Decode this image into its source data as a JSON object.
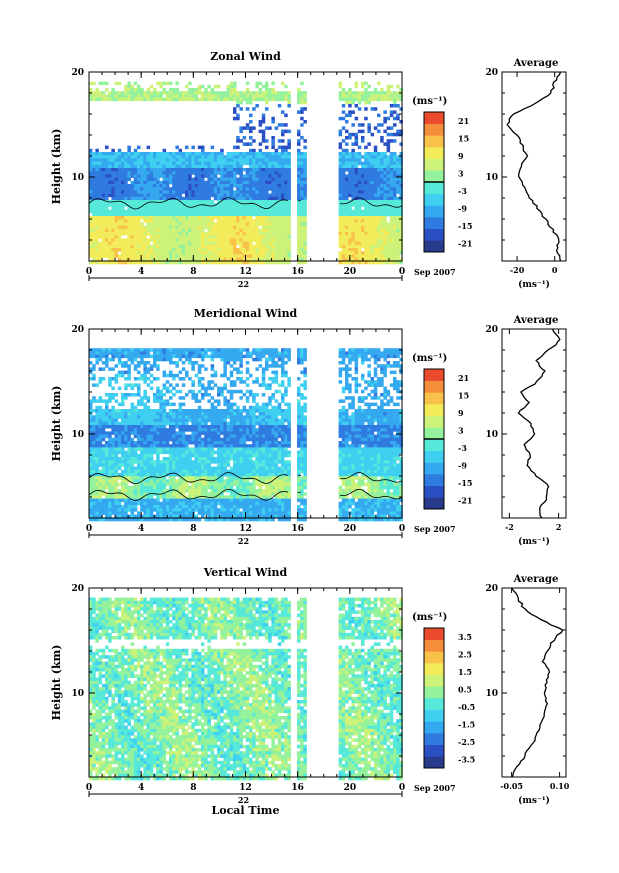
{
  "figure": {
    "xaxis_title": "Local Time",
    "date_label": "Sep 2007",
    "day_label": "22",
    "avg_title": "Average",
    "unit_label": "(ms⁻¹)",
    "ylabel": "Height (km)",
    "colors": [
      "#283a8c",
      "#2a4fc4",
      "#2f7be0",
      "#35a9ef",
      "#3fcff0",
      "#56e8d9",
      "#94f29c",
      "#cdf279",
      "#f2ec5a",
      "#f8c14a",
      "#f58e3a",
      "#ea4b2c"
    ]
  },
  "chart_data": [
    {
      "type": "heatmap",
      "title": "Zonal Wind",
      "xlabel": "",
      "ylabel": "Height (km)",
      "x_ticks": [
        "0",
        "4",
        "8",
        "12",
        "16",
        "20",
        "0"
      ],
      "y_ticks": [
        "10",
        "20"
      ],
      "xlim": [
        0,
        24
      ],
      "ylim": [
        2,
        20
      ],
      "colorbar": {
        "unit": "(ms⁻¹)",
        "ticks": [
          "21",
          "15",
          "9",
          "3",
          "-3",
          "-9",
          "-15",
          "-21"
        ],
        "range": [
          -24,
          24
        ]
      },
      "gaps_hours": [
        [
          15.4,
          15.9
        ],
        [
          16.5,
          19.0
        ]
      ],
      "profile": {
        "title": "Average",
        "xlabel": "(ms⁻¹)",
        "x_ticks": [
          "-20",
          "0"
        ],
        "xlim": [
          -28,
          6
        ],
        "y_ticks": [
          "10",
          "20"
        ],
        "height_km": [
          2,
          3,
          4,
          5,
          6,
          7,
          8,
          9,
          10,
          11,
          12,
          13,
          14,
          15,
          16,
          17,
          18,
          19,
          20
        ],
        "value": [
          3,
          1,
          2,
          -1,
          -5,
          -9,
          -13,
          -16,
          -19,
          -18,
          -15,
          -17,
          -20,
          -25,
          -22,
          -10,
          -2,
          0,
          3
        ]
      }
    },
    {
      "type": "heatmap",
      "title": "Meridional Wind",
      "xlabel": "",
      "ylabel": "Height (km)",
      "x_ticks": [
        "0",
        "4",
        "8",
        "12",
        "16",
        "20",
        "0"
      ],
      "y_ticks": [
        "10",
        "20"
      ],
      "xlim": [
        0,
        24
      ],
      "ylim": [
        2,
        20
      ],
      "colorbar": {
        "unit": "(ms⁻¹)",
        "ticks": [
          "21",
          "15",
          "9",
          "3",
          "-3",
          "-9",
          "-15",
          "-21"
        ],
        "range": [
          -24,
          24
        ]
      },
      "gaps_hours": [
        [
          15.4,
          15.9
        ],
        [
          16.5,
          19.0
        ]
      ],
      "profile": {
        "title": "Average",
        "xlabel": "(ms⁻¹)",
        "x_ticks": [
          "-2",
          "2"
        ],
        "xlim": [
          -2.6,
          2.6
        ],
        "y_ticks": [
          "10",
          "20"
        ],
        "height_km": [
          2,
          3,
          4,
          5,
          6,
          7,
          8,
          9,
          10,
          11,
          12,
          13,
          14,
          15,
          16,
          17,
          18,
          19,
          20
        ],
        "value": [
          0.6,
          0.4,
          1.1,
          1.2,
          0.2,
          -0.5,
          -0.3,
          -0.8,
          0.0,
          -0.2,
          -1.3,
          -0.4,
          -1.0,
          0.3,
          0.8,
          0.1,
          1.2,
          2.2,
          1.5
        ]
      }
    },
    {
      "type": "heatmap",
      "title": "Vertical Wind",
      "xlabel": "Local Time",
      "ylabel": "Height (km)",
      "x_ticks": [
        "0",
        "4",
        "8",
        "12",
        "16",
        "20",
        "0"
      ],
      "y_ticks": [
        "10",
        "20"
      ],
      "xlim": [
        0,
        24
      ],
      "ylim": [
        2,
        20
      ],
      "colorbar": {
        "unit": "(ms⁻¹)",
        "ticks": [
          "3.5",
          "2.5",
          "1.5",
          "0.5",
          "-0.5",
          "-1.5",
          "-2.5",
          "-3.5"
        ],
        "range": [
          -4,
          4
        ]
      },
      "gaps_hours": [
        [
          15.4,
          15.9
        ],
        [
          16.5,
          19.0
        ]
      ],
      "profile": {
        "title": "Average",
        "xlabel": "(ms⁻¹)",
        "x_ticks": [
          "-0.05",
          "0.10"
        ],
        "xlim": [
          -0.08,
          0.12
        ],
        "y_ticks": [
          "10",
          "20"
        ],
        "height_km": [
          2,
          3,
          4,
          5,
          6,
          7,
          8,
          9,
          10,
          11,
          12,
          13,
          14,
          15,
          16,
          17,
          18,
          19,
          20
        ],
        "value": [
          -0.05,
          -0.03,
          -0.01,
          0.01,
          0.03,
          0.04,
          0.05,
          0.06,
          0.05,
          0.06,
          0.07,
          0.05,
          0.06,
          0.08,
          0.11,
          0.04,
          -0.01,
          -0.03,
          -0.05
        ]
      }
    }
  ]
}
